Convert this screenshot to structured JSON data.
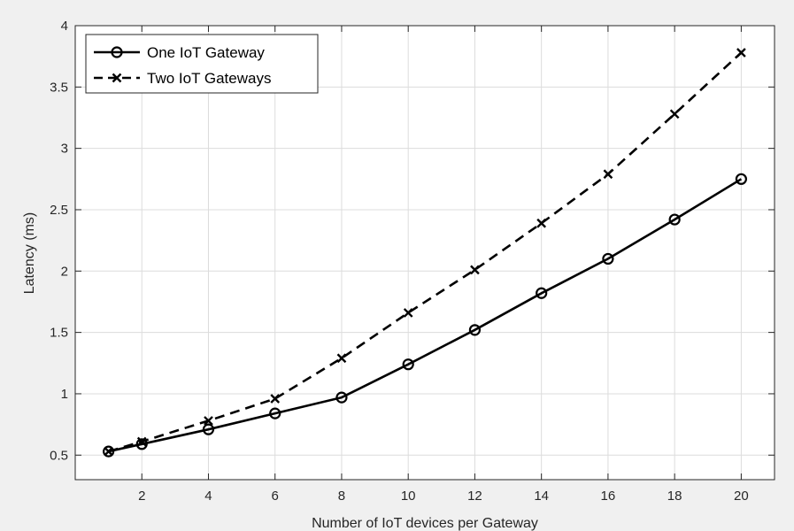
{
  "chart_data": {
    "type": "line",
    "xlabel": "Number of IoT devices per Gateway",
    "ylabel": "Latency (ms)",
    "xlim": [
      0,
      21
    ],
    "ylim": [
      0.3,
      4
    ],
    "xticks": [
      2,
      4,
      6,
      8,
      10,
      12,
      14,
      16,
      18,
      20
    ],
    "yticks": [
      0.5,
      1,
      1.5,
      2,
      2.5,
      3,
      3.5,
      4
    ],
    "ytick_labels": [
      "0.5",
      "1",
      "1.5",
      "2",
      "2.5",
      "3",
      "3.5",
      "4"
    ],
    "grid": true,
    "legend_position": "top-left",
    "x": [
      1,
      2,
      4,
      6,
      8,
      10,
      12,
      14,
      16,
      18,
      20
    ],
    "series": [
      {
        "name": "One IoT Gateway",
        "values": [
          0.53,
          0.59,
          0.71,
          0.84,
          0.97,
          1.24,
          1.52,
          1.82,
          2.1,
          2.42,
          2.75
        ],
        "line_style": "solid",
        "marker": "circle",
        "color": "#000000"
      },
      {
        "name": "Two IoT Gateways",
        "values": [
          0.53,
          0.61,
          0.78,
          0.96,
          1.29,
          1.66,
          2.01,
          2.39,
          2.79,
          3.28,
          3.78
        ],
        "line_style": "dashed",
        "marker": "x",
        "color": "#000000"
      }
    ]
  }
}
